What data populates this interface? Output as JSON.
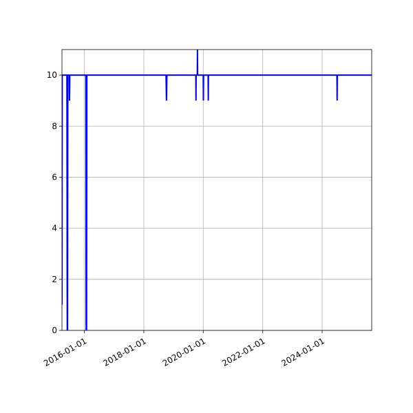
{
  "chart_data": {
    "type": "line",
    "title": "",
    "xlabel": "",
    "ylabel": "",
    "x_axis_type": "date",
    "xlim": [
      "2015-04-01",
      "2025-09-01"
    ],
    "ylim": [
      0,
      11
    ],
    "grid": true,
    "line_color": "#0000ff",
    "x_ticks": [
      "2016-01-01",
      "2018-01-01",
      "2020-01-01",
      "2022-01-01",
      "2024-01-01"
    ],
    "y_ticks": [
      0,
      2,
      4,
      6,
      8,
      10
    ],
    "series": [
      {
        "x": [
          "2015-04-01",
          "2015-04-04",
          "2015-04-08",
          "2015-04-12",
          "2015-05-01",
          "2015-06-01",
          "2015-06-05",
          "2015-06-08",
          "2015-06-12",
          "2015-07-01",
          "2015-07-03",
          "2015-07-06",
          "2016-01-20",
          "2016-01-23",
          "2016-01-26",
          "2016-01-28",
          "2016-01-31",
          "2018-10-01",
          "2018-10-06",
          "2018-10-11",
          "2019-10-02",
          "2019-10-04",
          "2019-10-06",
          "2019-10-20",
          "2019-10-22",
          "2019-10-24",
          "2020-01-01",
          "2020-01-03",
          "2020-01-05",
          "2020-03-01",
          "2020-03-03",
          "2020-03-05",
          "2024-07-01",
          "2024-07-03",
          "2024-07-05",
          "2025-09-01"
        ],
        "y": [
          1,
          10,
          10,
          10,
          10,
          10,
          0,
          0,
          10,
          10,
          9,
          10,
          10,
          0,
          0,
          0,
          10,
          10,
          9,
          10,
          10,
          9,
          10,
          10,
          11,
          10,
          10,
          9,
          10,
          10,
          9,
          10,
          10,
          9,
          10,
          10
        ]
      }
    ]
  }
}
